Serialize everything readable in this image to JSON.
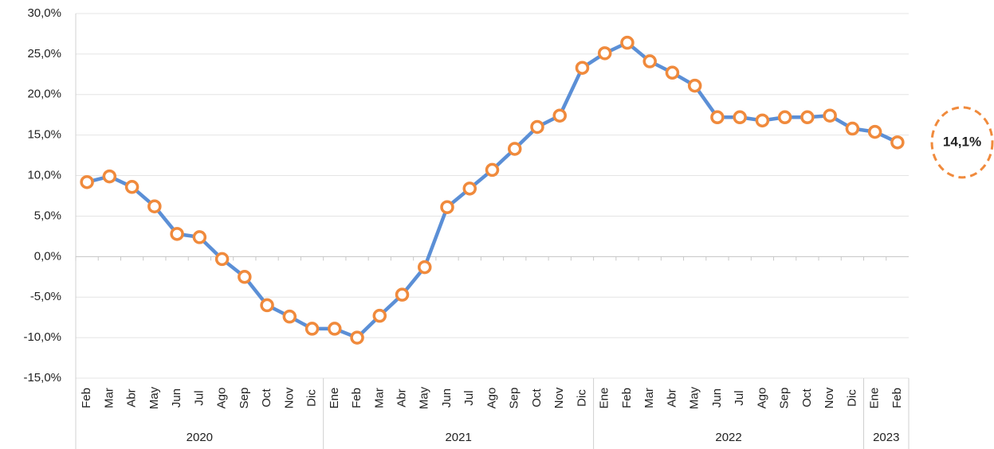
{
  "chart_data": {
    "type": "line",
    "categories": [
      "Feb",
      "Mar",
      "Abr",
      "May",
      "Jun",
      "Jul",
      "Ago",
      "Sep",
      "Oct",
      "Nov",
      "Dic",
      "Ene",
      "Feb",
      "Mar",
      "Abr",
      "May",
      "Jun",
      "Jul",
      "Ago",
      "Sep",
      "Oct",
      "Nov",
      "Dic",
      "Ene",
      "Feb",
      "Mar",
      "Abr",
      "May",
      "Jun",
      "Jul",
      "Ago",
      "Sep",
      "Oct",
      "Nov",
      "Dic",
      "Ene",
      "Feb"
    ],
    "groups": [
      {
        "name": "2020",
        "size": 11
      },
      {
        "name": "2021",
        "size": 12
      },
      {
        "name": "2022",
        "size": 12
      },
      {
        "name": "2023",
        "size": 2
      }
    ],
    "values": [
      9.2,
      9.9,
      8.6,
      6.2,
      2.8,
      2.4,
      -0.3,
      -2.5,
      -6.0,
      -7.4,
      -8.9,
      -8.9,
      -10.0,
      -7.3,
      -4.7,
      -1.3,
      6.1,
      8.4,
      10.7,
      13.3,
      16.0,
      17.4,
      23.3,
      25.1,
      26.4,
      24.1,
      22.7,
      21.1,
      17.2,
      17.2,
      16.8,
      17.2,
      17.2,
      17.4,
      15.8,
      15.4,
      14.1
    ],
    "color": "#5b8fd6",
    "marker_color": "#f08a3c",
    "ylim": [
      -15,
      30
    ],
    "yticks": [
      {
        "value": -15,
        "label": "-15,0%"
      },
      {
        "value": -10,
        "label": "-10,0%"
      },
      {
        "value": -5,
        "label": "-5,0%"
      },
      {
        "value": 0,
        "label": "0,0%"
      },
      {
        "value": 5,
        "label": "5,0%"
      },
      {
        "value": 10,
        "label": "10,0%"
      },
      {
        "value": 15,
        "label": "15,0%"
      },
      {
        "value": 20,
        "label": "20,0%"
      },
      {
        "value": 25,
        "label": "25,0%"
      },
      {
        "value": 30,
        "label": "30,0%"
      }
    ],
    "grid": true,
    "annotation": {
      "text": "14,1%",
      "value": 14.1
    }
  }
}
